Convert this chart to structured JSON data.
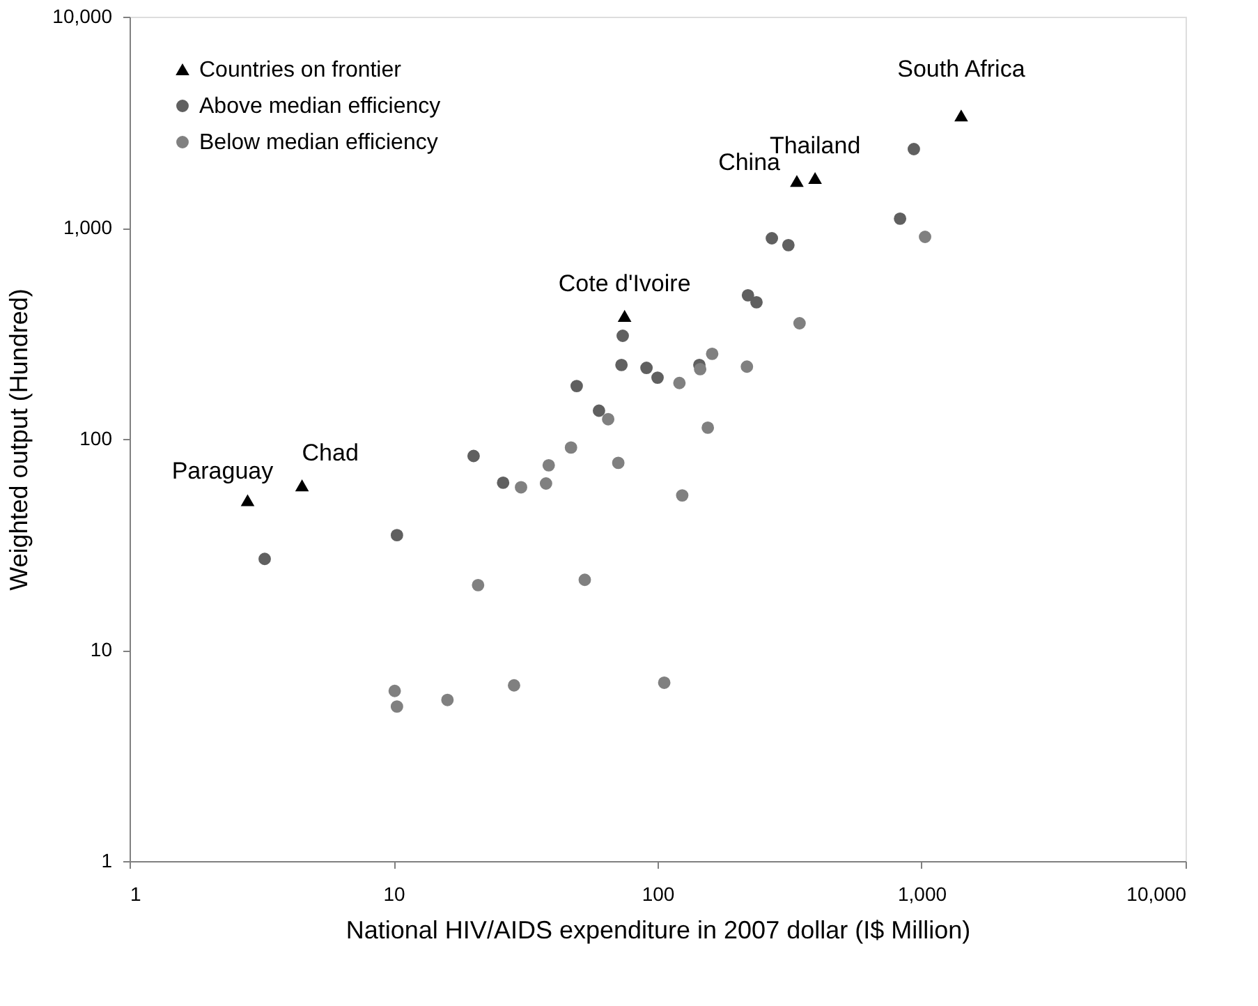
{
  "chart_data": {
    "type": "scatter",
    "xlabel": "National HIV/AIDS expenditure in 2007 dollar (I$ Million)",
    "ylabel": "Weighted output (Hundred)",
    "log": "xy",
    "grid": false,
    "legend": "top left",
    "xlim": [
      1,
      10000
    ],
    "ylim": [
      1,
      10000
    ],
    "xticks": [
      1,
      10,
      100,
      {
        "value": 1000,
        "label": "1,000"
      },
      {
        "value": 10000,
        "label": "10,000"
      }
    ],
    "yticks": [
      1,
      10,
      100,
      {
        "value": 1000,
        "label": "1,000"
      },
      {
        "value": 10000,
        "label": "10,000"
      }
    ],
    "series": [
      {
        "name": "Countries on frontier",
        "color": "#000000",
        "marker": "triangle",
        "x": [
          2.8,
          4.5,
          75,
          337,
          395,
          1413
        ],
        "values": [
          51,
          60,
          381,
          1660,
          1715,
          3390
        ]
      },
      {
        "name": "Above median efficiency",
        "color": "#606060",
        "marker": "circle",
        "x": [
          3.25,
          10.3,
          20.1,
          26,
          73.8,
          73,
          90.8,
          100,
          49.4,
          60,
          144,
          220,
          237,
          271,
          313,
          829,
          935
        ],
        "values": [
          27,
          35,
          83,
          62,
          308,
          224,
          217,
          195,
          178,
          136,
          224,
          479,
          444,
          892,
          828,
          1105,
          2361
        ]
      },
      {
        "name": "Below median efficiency",
        "color": "#808080",
        "marker": "circle",
        "x": [
          30.4,
          37.8,
          38.7,
          47,
          71,
          65,
          20.9,
          53,
          10.1,
          10.3,
          16,
          28.6,
          106,
          121,
          155,
          124,
          218,
          345,
          1031,
          145,
          161
        ],
        "values": [
          59,
          61.5,
          75,
          91,
          77,
          124,
          20.3,
          21.5,
          6.4,
          5.4,
          5.8,
          6.8,
          7.0,
          184,
          113,
          54,
          220,
          353,
          906,
          214,
          253
        ]
      }
    ],
    "annotations": [
      {
        "text": "Paraguay",
        "x": 2.8,
        "y": 51
      },
      {
        "text": "Chad",
        "x": 4.5,
        "y": 60
      },
      {
        "text": "Cote d'Ivoire",
        "x": 75,
        "y": 381
      },
      {
        "text": "China",
        "x": 337,
        "y": 1660
      },
      {
        "text": "Thailand",
        "x": 395,
        "y": 1715
      },
      {
        "text": "South Africa",
        "x": 1413,
        "y": 3390
      }
    ]
  }
}
